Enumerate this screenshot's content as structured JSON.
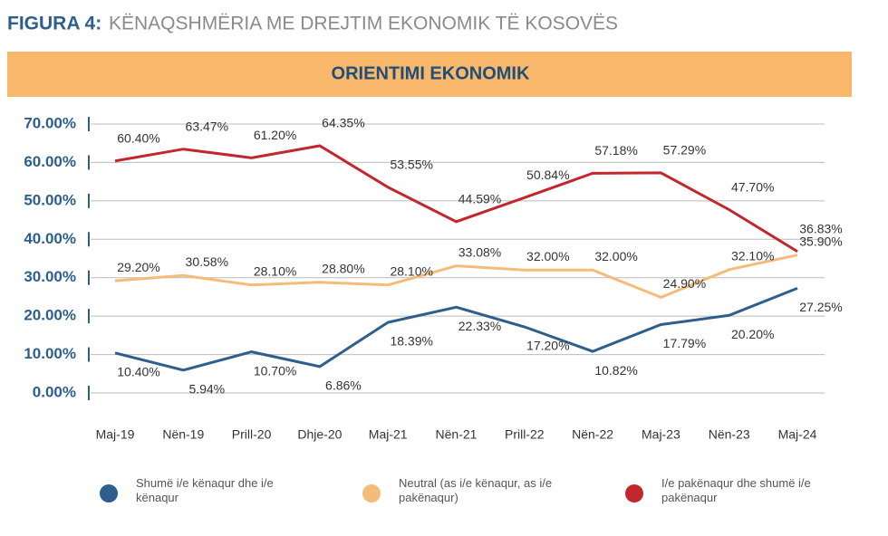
{
  "chart_data": {
    "type": "line",
    "figure_label": "FIGURA 4:",
    "title": "KËNAQSHMËRIA ME DREJTIM EKONOMIK TË KOSOVËS",
    "subtitle": "ORIENTIMI EKONOMIK",
    "categories": [
      "Maj-19",
      "Nën-19",
      "Prill-20",
      "Dhje-20",
      "Maj-21",
      "Nën-21",
      "Prill-22",
      "Nën-22",
      "Maj-23",
      "Nën-23",
      "Maj-24"
    ],
    "series": [
      {
        "name": "Shumë i/e kënaqur dhe i/e kënaqur",
        "color": "#2e5f8c",
        "values": [
          10.4,
          5.94,
          10.7,
          6.86,
          18.39,
          22.33,
          17.2,
          10.82,
          17.79,
          20.2,
          27.25
        ],
        "value_labels": [
          "10.40%",
          "5.94%",
          "10.70%",
          "6.86%",
          "18.39%",
          "22.33%",
          "17.20%",
          "10.82%",
          "17.79%",
          "20.20%",
          "27.25%"
        ]
      },
      {
        "name": "Neutral (as i/e kënaqur, as i/e pakënaqur)",
        "color": "#f5bb78",
        "values": [
          29.2,
          30.58,
          28.1,
          28.8,
          28.1,
          33.08,
          32.0,
          32.0,
          24.9,
          32.1,
          35.9
        ],
        "value_labels": [
          "29.20%",
          "30.58%",
          "28.10%",
          "28.80%",
          "28.10%",
          "33.08%",
          "32.00%",
          "32.00%",
          "24.90%",
          "32.10%",
          "35.90%"
        ]
      },
      {
        "name": "I/e pakënaqur dhe shumë i/e pakënaqur",
        "color": "#c1272d",
        "values": [
          60.4,
          63.47,
          61.2,
          64.35,
          53.55,
          44.59,
          50.84,
          57.18,
          57.29,
          47.7,
          36.83
        ],
        "value_labels": [
          "60.40%",
          "63.47%",
          "61.20%",
          "64.35%",
          "53.55%",
          "44.59%",
          "50.84%",
          "57.18%",
          "57.29%",
          "47.70%",
          "36.83%"
        ]
      }
    ],
    "ylim": [
      0,
      70
    ],
    "yticks": [
      {
        "value": 0,
        "label": "0.00%"
      },
      {
        "value": 10,
        "label": "10.00%"
      },
      {
        "value": 20,
        "label": "20.00%"
      },
      {
        "value": 30,
        "label": "30.00%"
      },
      {
        "value": 40,
        "label": "40.00%"
      },
      {
        "value": 50,
        "label": "50.00%"
      },
      {
        "value": 60,
        "label": "60.00%"
      },
      {
        "value": 70,
        "label": "70.00%"
      }
    ],
    "grid": true
  }
}
